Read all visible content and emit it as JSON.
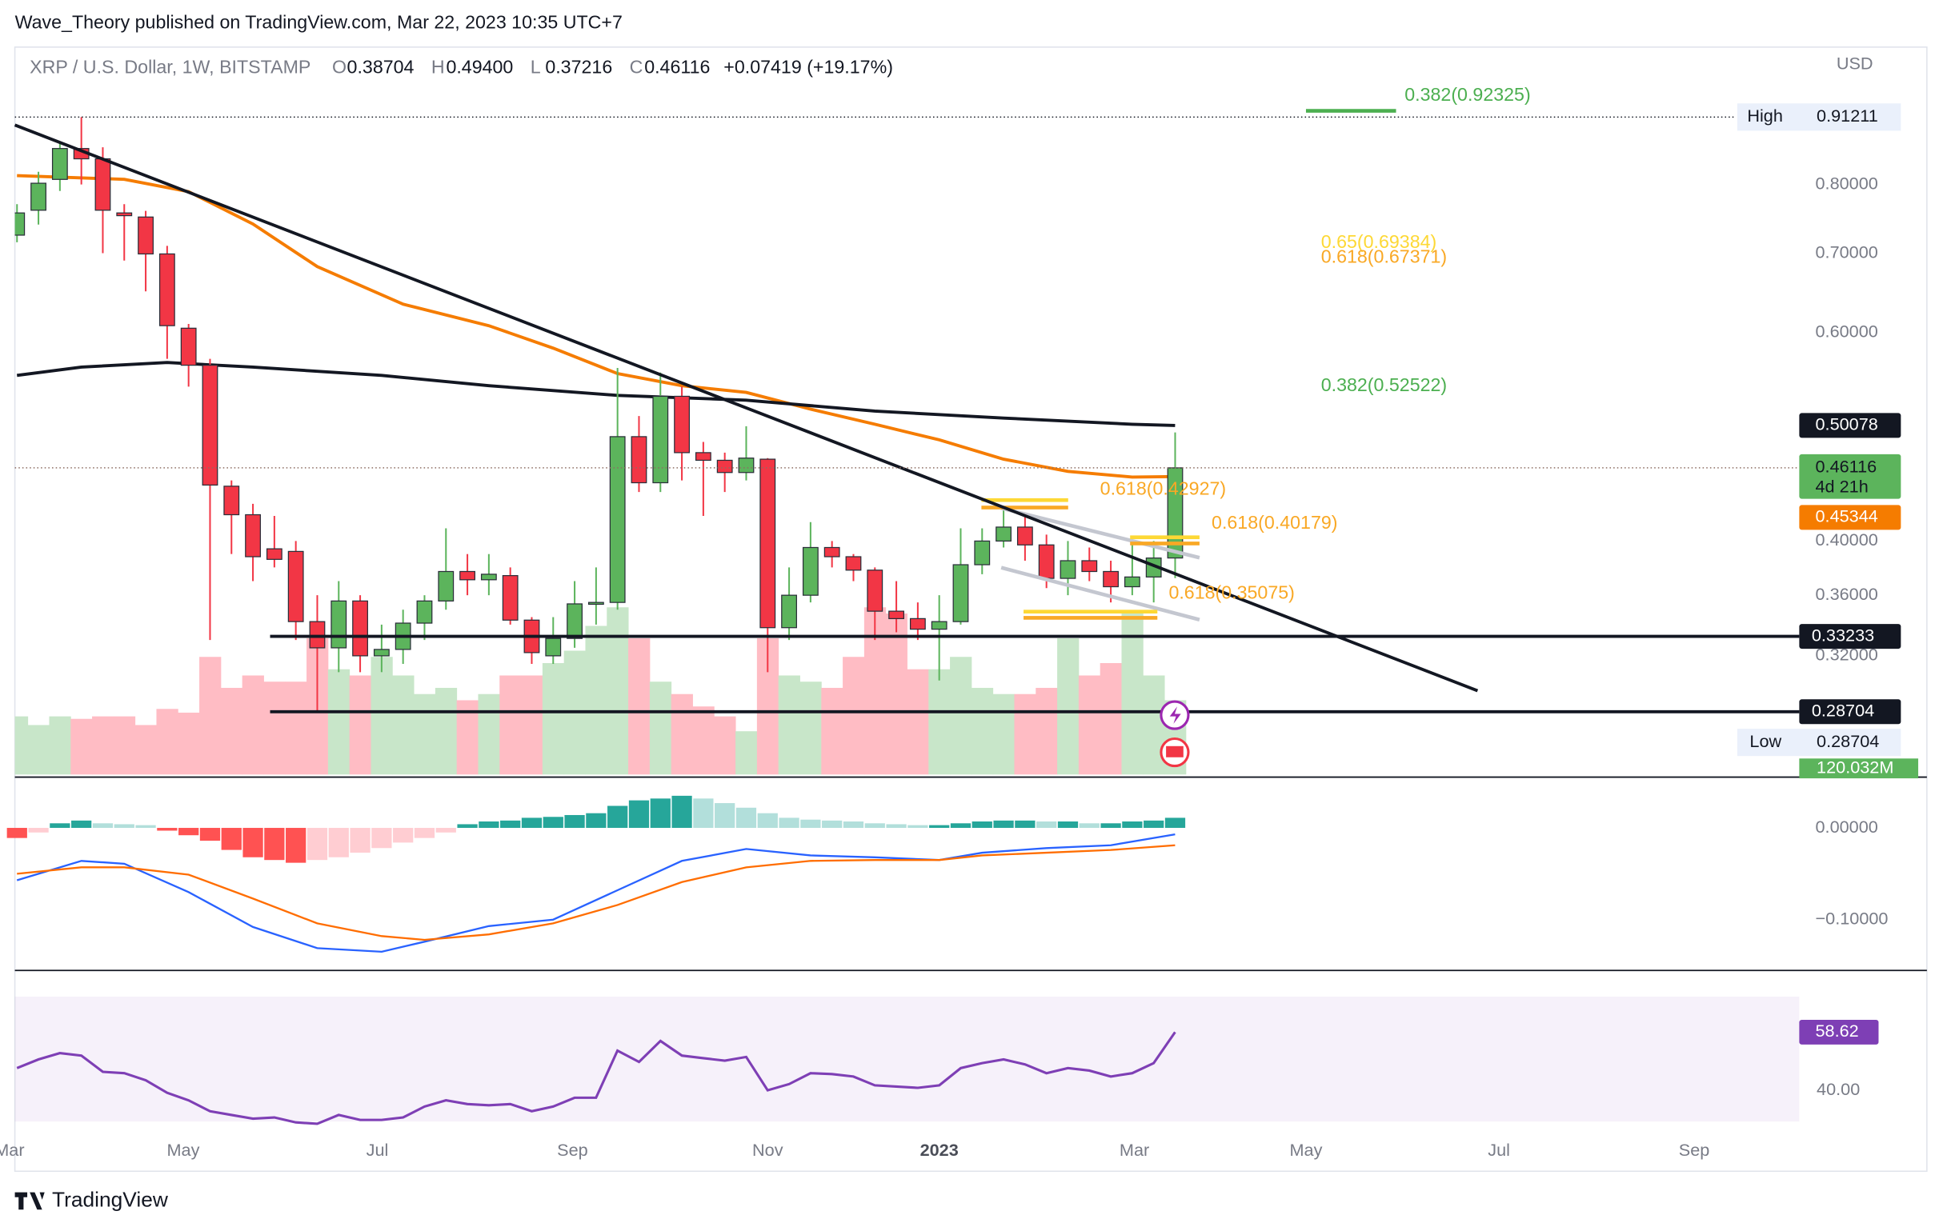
{
  "header": "Wave_Theory published on TradingView.com, Mar 22, 2023 10:35 UTC+7",
  "footer": "TradingView",
  "chart_data": {
    "type": "candlestick",
    "symbol": "XRP / U.S. Dollar, 1W, BITSTAMP",
    "legend": [
      {
        "key": "O",
        "value": "0.38704"
      },
      {
        "key": "H",
        "value": "0.49400"
      },
      {
        "key": "L",
        "value": "0.37216"
      },
      {
        "key": "C",
        "value": "0.46116"
      }
    ],
    "change": "+0.07419 (+19.17%)",
    "currency": "USD",
    "up_color": "#5cb45c",
    "down_color": "#f23645",
    "open": [
      0.725,
      0.761,
      0.808,
      0.858,
      0.841,
      0.757,
      0.751,
      0.699,
      0.605,
      0.563,
      0.445,
      0.421,
      0.394,
      0.392,
      0.342,
      0.325,
      0.356,
      0.32,
      0.324,
      0.341,
      0.356,
      0.377,
      0.371,
      0.374,
      0.343,
      0.32,
      0.331,
      0.354,
      0.355,
      0.49,
      0.448,
      0.53,
      0.475,
      0.468,
      0.457,
      0.469,
      0.338,
      0.36,
      0.395,
      0.388,
      0.378,
      0.349,
      0.344,
      0.337,
      0.342,
      0.382,
      0.4,
      0.411,
      0.397,
      0.372,
      0.385,
      0.377,
      0.366,
      0.373,
      0.38704
    ],
    "high": [
      0.77,
      0.82,
      0.87,
      0.91211,
      0.86,
      0.77,
      0.76,
      0.71,
      0.61,
      0.57,
      0.45,
      0.43,
      0.42,
      0.4,
      0.36,
      0.37,
      0.36,
      0.34,
      0.35,
      0.36,
      0.41,
      0.39,
      0.39,
      0.38,
      0.345,
      0.345,
      0.37,
      0.38,
      0.56,
      0.51,
      0.555,
      0.54,
      0.485,
      0.475,
      0.5,
      0.47,
      0.38,
      0.415,
      0.4,
      0.39,
      0.38,
      0.37,
      0.355,
      0.36,
      0.41,
      0.41,
      0.425,
      0.42,
      0.405,
      0.4,
      0.395,
      0.385,
      0.4,
      0.4,
      0.494
    ],
    "low": [
      0.715,
      0.74,
      0.79,
      0.8,
      0.7,
      0.69,
      0.65,
      0.57,
      0.54,
      0.33,
      0.39,
      0.37,
      0.38,
      0.33,
      0.28704,
      0.31,
      0.31,
      0.31,
      0.315,
      0.33,
      0.35,
      0.36,
      0.36,
      0.34,
      0.315,
      0.315,
      0.325,
      0.34,
      0.35,
      0.44,
      0.44,
      0.45,
      0.42,
      0.44,
      0.45,
      0.31,
      0.33,
      0.355,
      0.38,
      0.37,
      0.33,
      0.335,
      0.33,
      0.305,
      0.34,
      0.375,
      0.395,
      0.385,
      0.365,
      0.36,
      0.37,
      0.355,
      0.36,
      0.355,
      0.37216
    ],
    "close": [
      0.757,
      0.802,
      0.858,
      0.841,
      0.761,
      0.753,
      0.699,
      0.608,
      0.563,
      0.446,
      0.421,
      0.388,
      0.386,
      0.342,
      0.325,
      0.356,
      0.32,
      0.324,
      0.341,
      0.356,
      0.377,
      0.371,
      0.375,
      0.343,
      0.322,
      0.331,
      0.354,
      0.355,
      0.49,
      0.448,
      0.53,
      0.475,
      0.468,
      0.457,
      0.47,
      0.338,
      0.36,
      0.395,
      0.388,
      0.378,
      0.349,
      0.344,
      0.337,
      0.342,
      0.382,
      0.4,
      0.411,
      0.397,
      0.372,
      0.385,
      0.377,
      0.366,
      0.373,
      0.387,
      0.46116
    ],
    "xlim": [
      -0.1,
      83.1
    ],
    "xticks": [
      {
        "value": -0.35,
        "label": "Mar"
      },
      {
        "value": 7.75,
        "label": "May"
      },
      {
        "value": 16.8,
        "label": "Jul"
      },
      {
        "value": 25.9,
        "label": "Sep"
      },
      {
        "value": 35,
        "label": "Nov"
      },
      {
        "value": 43,
        "label": "2023"
      },
      {
        "value": 52.1,
        "label": "Mar"
      },
      {
        "value": 60.1,
        "label": "May"
      },
      {
        "value": 69.1,
        "label": "Jul"
      },
      {
        "value": 78.2,
        "label": "Sep"
      }
    ],
    "ylim": [
      0.254,
      1.045
    ],
    "log_scale": true,
    "yticks": [
      {
        "value": 0.32,
        "label": "0.32000"
      },
      {
        "value": 0.36,
        "label": "0.36000"
      },
      {
        "value": 0.4,
        "label": "0.40000"
      },
      {
        "value": 0.6,
        "label": "0.60000"
      },
      {
        "value": 0.7,
        "label": "0.70000"
      },
      {
        "value": 0.8,
        "label": "0.80000"
      }
    ],
    "ema": {
      "color": "#f57c00",
      "x": [
        0,
        5,
        8,
        11,
        14,
        18,
        22,
        25,
        28,
        31,
        34,
        37,
        40,
        43,
        46,
        49,
        52,
        54
      ],
      "values": [
        0.814,
        0.808,
        0.789,
        0.741,
        0.682,
        0.634,
        0.608,
        0.582,
        0.554,
        0.541,
        0.534,
        0.517,
        0.502,
        0.487,
        0.469,
        0.458,
        0.453,
        0.45344
      ]
    },
    "ma200": {
      "color": "#131722",
      "x": [
        0,
        3,
        7,
        11,
        17,
        22,
        28,
        34,
        40,
        46,
        52,
        54
      ],
      "values": [
        0.552,
        0.561,
        0.566,
        0.561,
        0.552,
        0.541,
        0.531,
        0.526,
        0.515,
        0.508,
        0.502,
        0.50078
      ]
    },
    "trendline": {
      "x": [
        -0.1,
        68.1
      ],
      "values": [
        0.898,
        0.299
      ]
    },
    "price_lines": [
      {
        "value": 0.33233,
        "start": 11.8
      },
      {
        "value": 0.28704,
        "start": 11.8
      }
    ],
    "high_label": "High",
    "low_label": "Low",
    "countdown": "4d 21h",
    "fib_labels": [
      {
        "text": "0.382(0.92325)",
        "value": 0.92325,
        "color": "#4caf50",
        "x": 64.7,
        "line": [
          60.1,
          64.3
        ]
      },
      {
        "text": "0.65(0.69384)",
        "value": 0.69384,
        "color": "#fdd835",
        "x": 60.8
      },
      {
        "text": "0.618(0.67371)",
        "value": 0.67371,
        "color": "#f9a825",
        "x": 60.8
      },
      {
        "text": "0.382(0.52522)",
        "value": 0.52522,
        "color": "#4caf50",
        "x": 60.8
      },
      {
        "text": "0.618(0.42927)",
        "value": 0.42927,
        "color": "#f9a825",
        "x": 50.5
      },
      {
        "text": "0.618(0.40179)",
        "value": 0.40179,
        "color": "#f9a825",
        "x": 55.7
      },
      {
        "text": "0.618(0.35075)",
        "value": 0.35075,
        "color": "#f9a825",
        "x": 53.7
      }
    ],
    "volume": {
      "ylim": [
        0,
        1174
      ],
      "last_label": "120.032M",
      "values": [
        94,
        80,
        94,
        90,
        94,
        94,
        80,
        106,
        100,
        190,
        140,
        160,
        150,
        150,
        220,
        170,
        160,
        190,
        160,
        130,
        140,
        120,
        130,
        160,
        160,
        180,
        200,
        240,
        270,
        220,
        150,
        130,
        110,
        94,
        70,
        220,
        160,
        150,
        140,
        190,
        270,
        260,
        170,
        170,
        190,
        140,
        130,
        130,
        140,
        220,
        160,
        180,
        260,
        160,
        120.032
      ]
    },
    "macd": {
      "ylim": [
        -0.154,
        0.054
      ],
      "yticks": [
        {
          "value": 0,
          "label": "0.00000"
        },
        {
          "value": -0.1,
          "label": "−0.10000"
        }
      ],
      "histogram": [
        -0.011,
        -0.005,
        0.005,
        0.008,
        0.005,
        0.004,
        0.003,
        -0.003,
        -0.008,
        -0.014,
        -0.024,
        -0.032,
        -0.035,
        -0.038,
        -0.035,
        -0.032,
        -0.027,
        -0.022,
        -0.016,
        -0.011,
        -0.005,
        0.004,
        0.007,
        0.008,
        0.011,
        0.012,
        0.014,
        0.016,
        0.024,
        0.03,
        0.032,
        0.035,
        0.032,
        0.027,
        0.022,
        0.016,
        0.011,
        0.009,
        0.008,
        0.007,
        0.005,
        0.004,
        0.003,
        0.003,
        0.005,
        0.007,
        0.008,
        0.008,
        0.007,
        0.007,
        0.005,
        0.005,
        0.007,
        0.008,
        0.011
      ],
      "x": [
        0,
        3,
        5,
        8,
        11,
        14,
        17,
        19,
        22,
        25,
        28,
        31,
        34,
        37,
        40,
        43,
        45,
        48,
        51,
        54
      ],
      "macd_line": {
        "color": "#2962ff",
        "values": [
          -0.057,
          -0.036,
          -0.039,
          -0.07,
          -0.108,
          -0.131,
          -0.135,
          -0.124,
          -0.107,
          -0.1,
          -0.068,
          -0.036,
          -0.023,
          -0.03,
          -0.032,
          -0.035,
          -0.027,
          -0.022,
          -0.019,
          -0.007
        ]
      },
      "signal_line": {
        "color": "#ff6d00",
        "values": [
          -0.05,
          -0.043,
          -0.043,
          -0.051,
          -0.077,
          -0.104,
          -0.118,
          -0.122,
          -0.116,
          -0.104,
          -0.084,
          -0.059,
          -0.043,
          -0.036,
          -0.035,
          -0.035,
          -0.03,
          -0.027,
          -0.024,
          -0.019
        ]
      }
    },
    "rsi": {
      "ylim": [
        24,
        78
      ],
      "band": [
        30,
        70
      ],
      "color": "#7e3fb5",
      "yticks": [
        {
          "value": 40,
          "label": "40.00"
        }
      ],
      "values": [
        47.1,
        49.9,
        51.9,
        51.1,
        45.9,
        45.5,
        43.2,
        39.2,
        36.8,
        33.3,
        32.1,
        30.9,
        31.3,
        29.7,
        29.3,
        32.1,
        30.5,
        30.5,
        31.3,
        34.8,
        36.8,
        35.6,
        35.2,
        35.6,
        33.3,
        34.8,
        37.6,
        37.6,
        52.7,
        49.1,
        55.8,
        51.1,
        50.3,
        49.5,
        50.7,
        40.0,
        42.0,
        45.5,
        45.2,
        44.4,
        41.6,
        41.2,
        40.8,
        41.6,
        47.1,
        48.7,
        49.9,
        48.3,
        45.5,
        47.1,
        46.3,
        44.4,
        45.5,
        48.7,
        58.62
      ]
    }
  }
}
